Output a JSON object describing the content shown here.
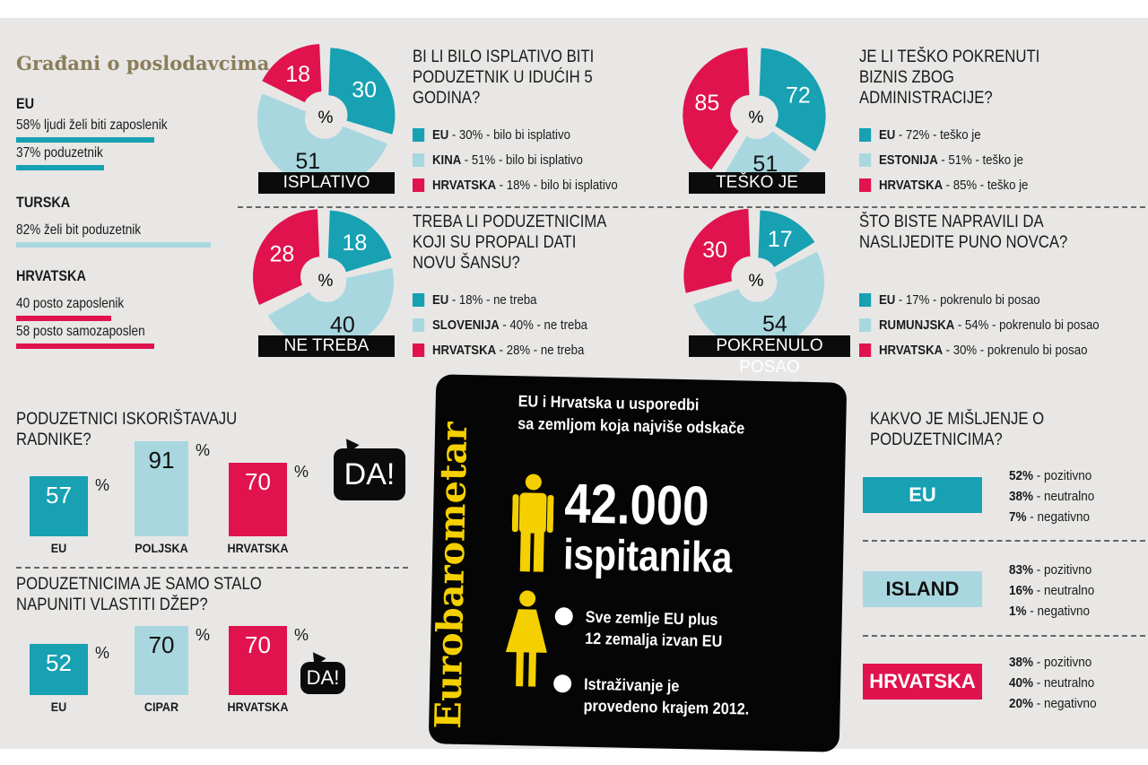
{
  "title": "Građani o poslodavcima",
  "colors": {
    "teal": "#17a1b3",
    "light": "#a9d7e0",
    "red": "#e0134f",
    "black": "#0b0b0b",
    "yellow": "#f5d000"
  },
  "left_panel": {
    "groups": [
      {
        "country": "EU",
        "lines": [
          {
            "text": "58% ljudi želi biti zaposlenik",
            "value": 58,
            "color": "teal"
          },
          {
            "text": "37% poduzetnik",
            "value": 37,
            "color": "teal"
          }
        ]
      },
      {
        "country": "TURSKA",
        "lines": [
          {
            "text": "82% želi bit poduzetnik",
            "value": 82,
            "color": "light"
          }
        ]
      },
      {
        "country": "HRVATSKA",
        "lines": [
          {
            "text": "40 posto zaposlenik",
            "value": 40,
            "color": "red"
          },
          {
            "text": "58 posto samozaposlen",
            "value": 58,
            "color": "red"
          }
        ]
      }
    ]
  },
  "chart_data": [
    {
      "type": "pie",
      "title": "BI LI BILO ISPLATIVO BITI PODUZETNIK U IDUĆIH 5 GODINA?",
      "label": "ISPLATIVO",
      "center": "%",
      "slices": [
        {
          "name": "EU",
          "value": 30,
          "color": "teal",
          "text": "- 30% - bilo bi isplativo"
        },
        {
          "name": "KINA",
          "value": 51,
          "color": "light",
          "text": "- 51% - bilo bi isplativo"
        },
        {
          "name": "HRVATSKA",
          "value": 18,
          "color": "red",
          "text": "- 18% - bilo bi isplativo"
        }
      ]
    },
    {
      "type": "pie",
      "title": "JE LI TEŠKO POKRENUTI BIZNIS ZBOG ADMINISTRACIJE?",
      "label": "TEŠKO JE",
      "center": "%",
      "slices": [
        {
          "name": "EU",
          "value": 72,
          "color": "teal",
          "text": "- 72% - teško je"
        },
        {
          "name": "ESTONIJA",
          "value": 51,
          "color": "light",
          "text": "- 51% - teško je"
        },
        {
          "name": "HRVATSKA",
          "value": 85,
          "color": "red",
          "text": "- 85% - teško je"
        }
      ]
    },
    {
      "type": "pie",
      "title": "TREBA LI PODUZETNICIMA KOJI SU PROPALI DATI NOVU ŠANSU?",
      "label": "NE TREBA",
      "center": "%",
      "slices": [
        {
          "name": "EU",
          "value": 18,
          "color": "teal",
          "text": "- 18% - ne treba"
        },
        {
          "name": "SLOVENIJA",
          "value": 40,
          "color": "light",
          "text": "- 40% - ne treba"
        },
        {
          "name": "HRVATSKA",
          "value": 28,
          "color": "red",
          "text": "- 28% - ne treba"
        }
      ]
    },
    {
      "type": "pie",
      "title": "ŠTO BISTE NAPRAVILI DA NASLIJEDITE PUNO NOVCA?",
      "label": "POKRENULO POSAO",
      "center": "%",
      "slices": [
        {
          "name": "EU",
          "value": 17,
          "color": "teal",
          "text": "- 17% - pokrenulo bi posao"
        },
        {
          "name": "RUMUNJSKA",
          "value": 54,
          "color": "light",
          "text": "- 54% - pokrenulo bi posao"
        },
        {
          "name": "HRVATSKA",
          "value": 30,
          "color": "red",
          "text": "- 30% - pokrenulo bi posao"
        }
      ]
    },
    {
      "type": "bar",
      "title": "PODUZETNICI ISKORIŠTAVAJU RADNIKE?",
      "unit": "%",
      "answer": "DA!",
      "categories": [
        "EU",
        "POLJSKA",
        "HRVATSKA"
      ],
      "values": [
        57,
        91,
        70
      ],
      "colors": [
        "teal",
        "light",
        "red"
      ]
    },
    {
      "type": "bar",
      "title": "PODUZETNICIMA JE SAMO STALO NAPUNITI VLASTITI DŽEP?",
      "unit": "%",
      "answer": "DA!",
      "categories": [
        "EU",
        "CIPAR",
        "HRVATSKA"
      ],
      "values": [
        52,
        70,
        70
      ],
      "colors": [
        "teal",
        "light",
        "red"
      ]
    },
    {
      "type": "table",
      "title": "KAKVO JE MIŠLJENJE O PODUZETNICIMA?",
      "rows": [
        {
          "country": "EU",
          "color": "teal",
          "items": [
            {
              "pct": "52%",
              "label": " - pozitivno"
            },
            {
              "pct": "38%",
              "label": " - neutralno"
            },
            {
              "pct": "7%",
              "label": " - negativno"
            }
          ]
        },
        {
          "country": "ISLAND",
          "color": "light",
          "items": [
            {
              "pct": "83%",
              "label": " - pozitivno"
            },
            {
              "pct": "16%",
              "label": " - neutralno"
            },
            {
              "pct": "1%",
              "label": " - negativno"
            }
          ]
        },
        {
          "country": "HRVATSKA",
          "color": "red",
          "items": [
            {
              "pct": "38%",
              "label": " - pozitivno"
            },
            {
              "pct": "40%",
              "label": " - neutralno"
            },
            {
              "pct": "20%",
              "label": " - negativno"
            }
          ]
        }
      ]
    }
  ],
  "card": {
    "brand": "Eurobarometar",
    "subtitle1": "EU i Hrvatska u usporedbi",
    "subtitle2": "sa zemljom koja najviše odskače",
    "big_number": "42.000",
    "big_label": "ispitanika",
    "bullets": [
      [
        "Sve zemlje EU plus",
        "12 zemalja izvan EU"
      ],
      [
        "Istraživanje je",
        "provedeno krajem 2012."
      ]
    ]
  }
}
